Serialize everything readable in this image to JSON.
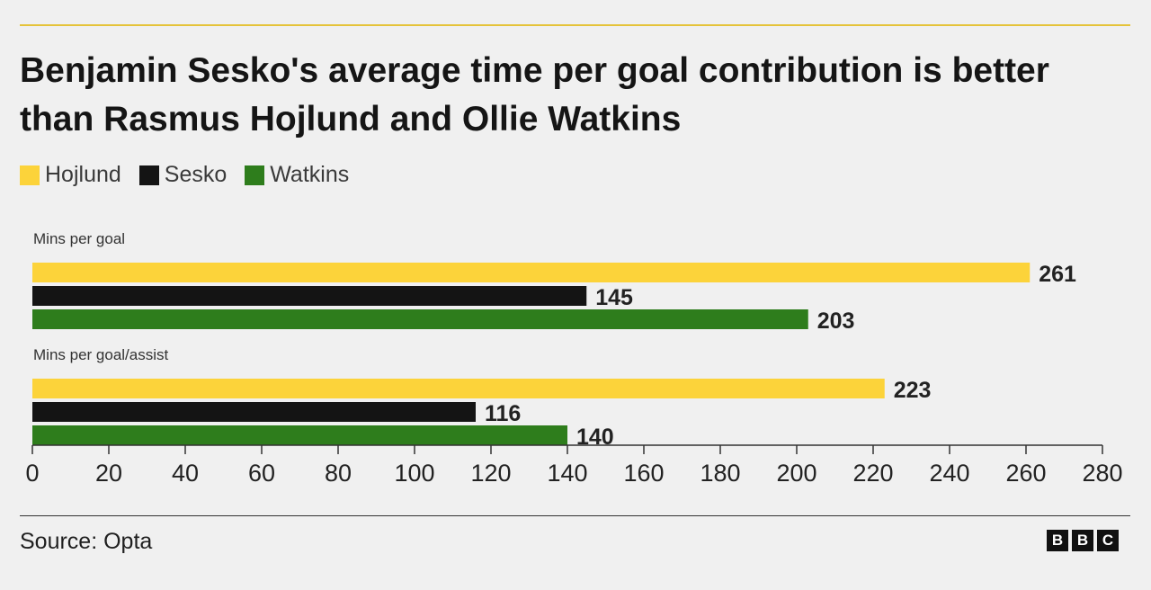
{
  "title": "Benjamin Sesko's average time per goal contribution is better than Rasmus Hojlund and Ollie Watkins",
  "source": "Source: Opta",
  "logo_letters": [
    "B",
    "B",
    "C"
  ],
  "colors": {
    "Hojlund": "#fcd33a",
    "Sesko": "#141414",
    "Watkins": "#2e7d1c"
  },
  "legend": [
    "Hojlund",
    "Sesko",
    "Watkins"
  ],
  "chart_data": {
    "type": "bar",
    "orientation": "horizontal",
    "title": "Benjamin Sesko's average time per goal contribution is better than Rasmus Hojlund and Ollie Watkins",
    "groups": [
      {
        "label": "Mins per goal",
        "values": {
          "Hojlund": 261,
          "Sesko": 145,
          "Watkins": 203
        }
      },
      {
        "label": "Mins per goal/assist",
        "values": {
          "Hojlund": 223,
          "Sesko": 116,
          "Watkins": 140
        }
      }
    ],
    "series": [
      {
        "name": "Hojlund",
        "values": [
          261,
          223
        ]
      },
      {
        "name": "Sesko",
        "values": [
          145,
          116
        ]
      },
      {
        "name": "Watkins",
        "values": [
          203,
          140
        ]
      }
    ],
    "xlim": [
      0,
      280
    ],
    "xticks": [
      0,
      20,
      40,
      60,
      80,
      100,
      120,
      140,
      160,
      180,
      200,
      220,
      240,
      260,
      280
    ],
    "grid": false,
    "legend_position": "top-left"
  }
}
